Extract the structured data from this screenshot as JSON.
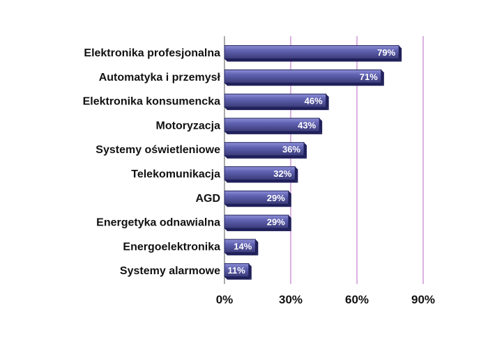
{
  "chart_data": {
    "type": "bar",
    "orientation": "horizontal",
    "categories": [
      "Elektronika profesjonalna",
      "Automatyka i przemysł",
      "Elektronika konsumencka",
      "Motoryzacja",
      "Systemy oświetleniowe",
      "Telekomunikacja",
      "AGD",
      "Energetyka odnawialna",
      "Energoelektronika",
      "Systemy alarmowe"
    ],
    "values": [
      79,
      71,
      46,
      43,
      36,
      32,
      29,
      29,
      14,
      11
    ],
    "data_labels": [
      "79%",
      "71%",
      "46%",
      "43%",
      "36%",
      "32%",
      "29%",
      "29%",
      "14%",
      "11%"
    ],
    "xlim": [
      0,
      90
    ],
    "xticks": [
      0,
      30,
      60,
      90
    ],
    "xtick_labels": [
      "0%",
      "30%",
      "60%",
      "90%"
    ],
    "title": "",
    "xlabel": "",
    "ylabel": "",
    "grid": "vertical gridlines at 30%, 60%, 90%",
    "legend": "none",
    "colors": {
      "bar_face": "#6264b4",
      "bar_top": "#8e90d8",
      "bar_edge": "#20205a",
      "bar_shadow": "#3a3a78",
      "gridline": "#b565c0",
      "axis": "#555555"
    }
  }
}
